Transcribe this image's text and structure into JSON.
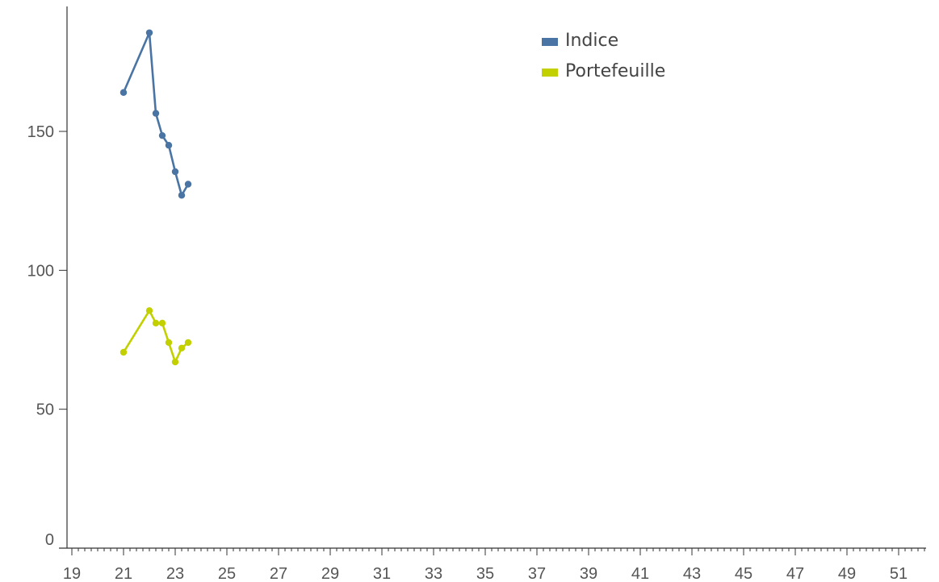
{
  "chart_data": {
    "type": "line",
    "title": "",
    "xlabel": "",
    "ylabel": "",
    "xlim": [
      18.8,
      52.0
    ],
    "ylim": [
      0,
      190
    ],
    "x_ticks": [
      19,
      21,
      23,
      25,
      27,
      29,
      31,
      33,
      35,
      37,
      39,
      41,
      43,
      45,
      47,
      49,
      51
    ],
    "y_ticks": [
      0,
      50,
      100,
      150
    ],
    "grid": false,
    "legend_position": "top-center",
    "series": [
      {
        "name": "Indice",
        "color": "#4a74a4",
        "points": [
          {
            "x": 21.0,
            "y": 164
          },
          {
            "x": 22.0,
            "y": 185.5
          },
          {
            "x": 22.25,
            "y": 156.5
          },
          {
            "x": 22.5,
            "y": 148.5
          },
          {
            "x": 22.75,
            "y": 145
          },
          {
            "x": 23.0,
            "y": 135.5
          },
          {
            "x": 23.25,
            "y": 127
          },
          {
            "x": 23.5,
            "y": 131
          }
        ]
      },
      {
        "name": "Portefeuille",
        "color": "#c3d000",
        "points": [
          {
            "x": 21.0,
            "y": 70.5
          },
          {
            "x": 22.0,
            "y": 85.5
          },
          {
            "x": 22.25,
            "y": 81
          },
          {
            "x": 22.5,
            "y": 81
          },
          {
            "x": 22.75,
            "y": 74
          },
          {
            "x": 23.0,
            "y": 67
          },
          {
            "x": 23.25,
            "y": 72
          },
          {
            "x": 23.5,
            "y": 74
          }
        ]
      }
    ]
  }
}
